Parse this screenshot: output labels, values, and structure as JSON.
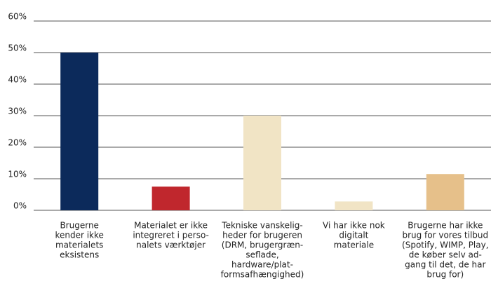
{
  "chart_data": {
    "type": "bar",
    "categories": [
      [
        "Brugerne",
        "kender ikke",
        "materialets",
        "eksistens"
      ],
      [
        "Materialet er ikke",
        "integreret i perso-",
        "nalets værktøjer"
      ],
      [
        "Tekniske vanskelig-",
        "heder for brugeren",
        "(DRM, brugergræn-",
        "seflade,",
        "hardware/plat-",
        "formsafhængighed)"
      ],
      [
        "Vi har ikke nok",
        "digitalt",
        "materiale"
      ],
      [
        "Brugerne har ikke",
        "brug for vores tilbud",
        "(Spotify, WIMP, Play,",
        "de køber selv ad-",
        "gang til det, de har",
        "brug for)"
      ]
    ],
    "values": [
      50,
      7.5,
      30,
      2.8,
      11.5
    ],
    "colors": [
      "#0c2a5b",
      "#c0272d",
      "#f1e4c5",
      "#f1e4c5",
      "#e6c08a"
    ],
    "ylim": [
      0,
      60
    ],
    "yticks": [
      {
        "value": 0,
        "label": "0%"
      },
      {
        "value": 10,
        "label": "10%"
      },
      {
        "value": 20,
        "label": "20%"
      },
      {
        "value": 30,
        "label": "30%"
      },
      {
        "value": 40,
        "label": "40%"
      },
      {
        "value": 50,
        "label": "50%"
      },
      {
        "value": 60,
        "label": "60%"
      }
    ],
    "grid": true
  }
}
